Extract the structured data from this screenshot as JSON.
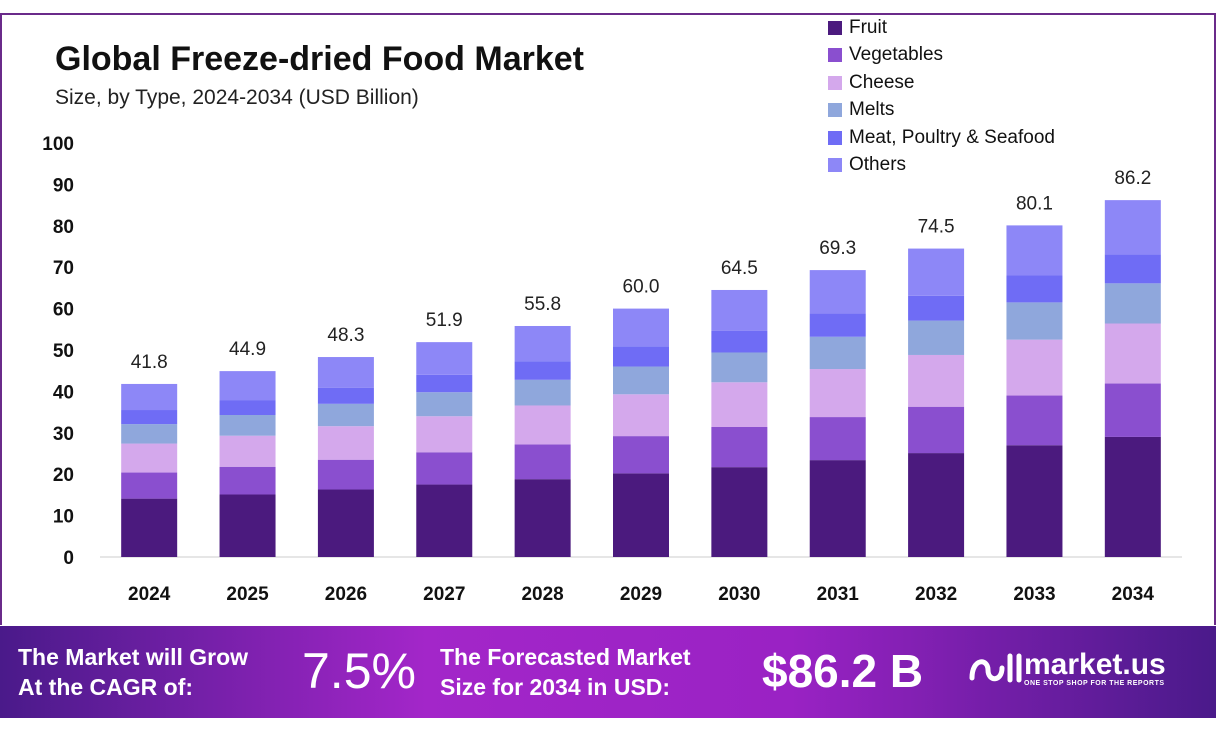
{
  "chart_data": {
    "type": "bar",
    "stacked": true,
    "title": "Global Freeze-dried Food Market",
    "subtitle": "Size, by Type, 2024-2034 (USD Billion)",
    "categories": [
      "2024",
      "2025",
      "2026",
      "2027",
      "2028",
      "2029",
      "2030",
      "2031",
      "2032",
      "2033",
      "2034"
    ],
    "totals": [
      "41.8",
      "44.9",
      "48.3",
      "51.9",
      "55.8",
      "60.0",
      "64.5",
      "69.3",
      "74.5",
      "80.1",
      "86.2"
    ],
    "series": [
      {
        "name": "Fruit",
        "color": "#4b1a7e",
        "values": [
          14.1,
          15.1,
          16.3,
          17.5,
          18.8,
          20.2,
          21.7,
          23.4,
          25.1,
          27.0,
          29.0
        ]
      },
      {
        "name": "Vegetables",
        "color": "#8a4fcf",
        "values": [
          6.3,
          6.7,
          7.2,
          7.8,
          8.4,
          9.0,
          9.7,
          10.4,
          11.2,
          12.0,
          12.9
        ]
      },
      {
        "name": "Cheese",
        "color": "#d4a8ec",
        "values": [
          7.0,
          7.5,
          8.1,
          8.7,
          9.4,
          10.1,
          10.8,
          11.6,
          12.5,
          13.5,
          14.5
        ]
      },
      {
        "name": "Melts",
        "color": "#8fa7dc",
        "values": [
          4.7,
          5.0,
          5.4,
          5.8,
          6.2,
          6.7,
          7.2,
          7.8,
          8.3,
          9.0,
          9.7
        ]
      },
      {
        "name": "Meat, Poultry & Seafood",
        "color": "#6f6cf5",
        "values": [
          3.4,
          3.6,
          3.9,
          4.2,
          4.5,
          4.9,
          5.2,
          5.6,
          6.0,
          6.5,
          7.0
        ]
      },
      {
        "name": "Others",
        "color": "#8d87f7",
        "values": [
          6.3,
          7.0,
          7.4,
          7.9,
          8.5,
          9.1,
          9.9,
          10.5,
          11.4,
          12.1,
          13.1
        ]
      }
    ],
    "yticks": [
      "0",
      "10",
      "20",
      "30",
      "40",
      "50",
      "60",
      "70",
      "80",
      "90",
      "100"
    ],
    "ylim": [
      0,
      100
    ],
    "grid": false,
    "legend": "top-right"
  },
  "footer": {
    "cagr_label_1": "The Market will Grow",
    "cagr_label_2": "At the CAGR of:",
    "cagr_value": "7.5%",
    "forecast_label_1": "The Forecasted Market",
    "forecast_label_2": "Size for 2034 in USD:",
    "forecast_value": "$86.2 B",
    "brand": "market.us",
    "tagline": "ONE STOP SHOP FOR THE REPORTS"
  }
}
